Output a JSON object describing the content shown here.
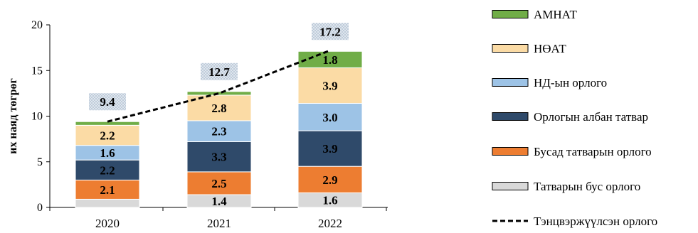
{
  "chart_data": {
    "type": "bar",
    "stacked": true,
    "categories": [
      "2020",
      "2021",
      "2022"
    ],
    "ylabel": "их наяд төгрөг",
    "xlabel": "",
    "ylim": [
      0,
      20
    ],
    "yticks": [
      0,
      5,
      10,
      15,
      20
    ],
    "grid": false,
    "legend_position": "right",
    "series": [
      {
        "name": "Татварын бус орлого",
        "color": "#d9d9d9",
        "values": [
          0.9,
          1.4,
          1.6
        ],
        "labels": [
          "",
          "1.4",
          "1.6"
        ]
      },
      {
        "name": "Бусад татварын орлого",
        "color": "#ed7d31",
        "values": [
          2.1,
          2.5,
          2.9
        ],
        "labels": [
          "2.1",
          "2.5",
          "2.9"
        ]
      },
      {
        "name": "Орлогын албан татвар",
        "color": "#2f4a6a",
        "values": [
          2.2,
          3.3,
          3.9
        ],
        "labels": [
          "2.2",
          "3.3",
          "3.9"
        ]
      },
      {
        "name": "НД-ын орлого",
        "color": "#9dc3e6",
        "values": [
          1.6,
          2.3,
          3.0
        ],
        "labels": [
          "1.6",
          "2.3",
          "3.0"
        ]
      },
      {
        "name": "НӨАТ",
        "color": "#fbdba5",
        "values": [
          2.2,
          2.8,
          3.9
        ],
        "labels": [
          "2.2",
          "2.8",
          "3.9"
        ]
      },
      {
        "name": "АМНАТ",
        "color": "#70ad47",
        "values": [
          0.4,
          0.4,
          1.8
        ],
        "labels": [
          "",
          "",
          "1.8"
        ]
      }
    ],
    "totals": [
      "9.4",
      "12.7",
      "17.2"
    ],
    "line_series": {
      "name": "Тэнцвэржүүлсэн орлого",
      "values": [
        9.4,
        12.5,
        17.2
      ],
      "style": "dashed",
      "color": "#000000"
    }
  }
}
